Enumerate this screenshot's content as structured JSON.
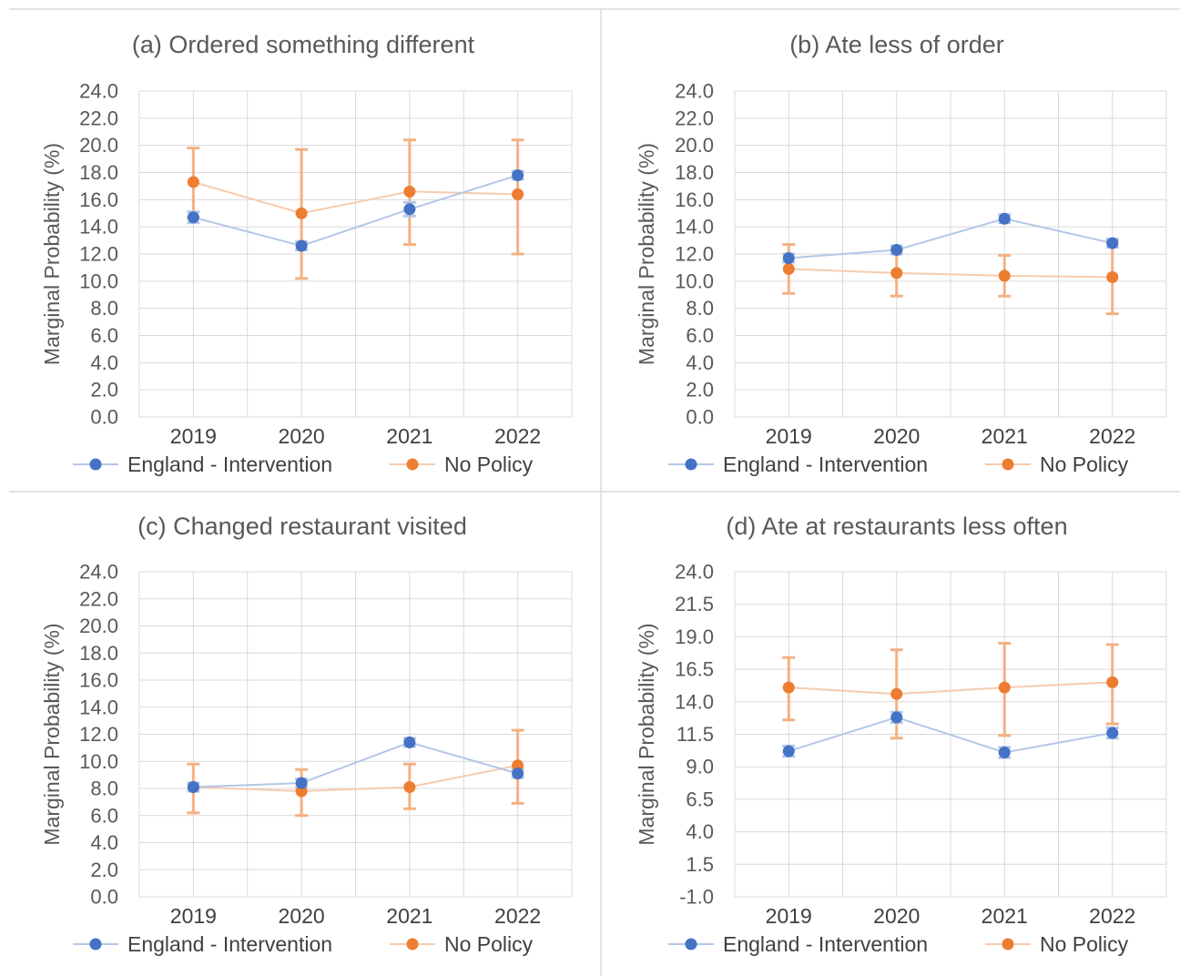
{
  "colors": {
    "series": [
      "#4472C4",
      "#ED7D31"
    ],
    "series_line": [
      "#B4C7E7",
      "#F8CBAD"
    ],
    "error_bar": "#F4B183",
    "grid": "#D9D9D9",
    "text": "#595959"
  },
  "chart_data": [
    {
      "type": "line",
      "title": "(a) Ordered something different",
      "xlabel": "",
      "ylabel": "Marginal  Probability (%)",
      "categories": [
        "2019",
        "2020",
        "2021",
        "2022"
      ],
      "ylim": [
        0,
        24
      ],
      "yticks": [
        "0.0",
        "2.0",
        "4.0",
        "6.0",
        "8.0",
        "10.0",
        "12.0",
        "14.0",
        "16.0",
        "18.0",
        "20.0",
        "22.0",
        "24.0"
      ],
      "grid": true,
      "legend_position": "bottom",
      "series": [
        {
          "name": "England - Intervention",
          "values": [
            14.7,
            12.6,
            15.3,
            17.8
          ],
          "error_low": [
            14.3,
            12.3,
            14.8,
            17.5
          ],
          "error_high": [
            15.1,
            12.9,
            15.8,
            18.1
          ]
        },
        {
          "name": "No Policy",
          "values": [
            17.3,
            15.0,
            16.6,
            16.4
          ],
          "error_low": [
            14.7,
            10.2,
            12.7,
            12.0
          ],
          "error_high": [
            19.8,
            19.7,
            20.4,
            20.4
          ]
        }
      ]
    },
    {
      "type": "line",
      "title": "(b) Ate less of order",
      "xlabel": "",
      "ylabel": "Marginal Probability (%)",
      "categories": [
        "2019",
        "2020",
        "2021",
        "2022"
      ],
      "ylim": [
        0,
        24
      ],
      "yticks": [
        "0.0",
        "2.0",
        "4.0",
        "6.0",
        "8.0",
        "10.0",
        "12.0",
        "14.0",
        "16.0",
        "18.0",
        "20.0",
        "22.0",
        "24.0"
      ],
      "grid": true,
      "legend_position": "bottom",
      "series": [
        {
          "name": "England - Intervention",
          "values": [
            11.7,
            12.3,
            14.6,
            12.8
          ],
          "error_low": [
            11.4,
            12.0,
            14.3,
            12.5
          ],
          "error_high": [
            12.0,
            12.6,
            14.9,
            13.1
          ]
        },
        {
          "name": "No Policy",
          "values": [
            10.9,
            10.6,
            10.4,
            10.3
          ],
          "error_low": [
            9.1,
            8.9,
            8.9,
            7.6
          ],
          "error_high": [
            12.7,
            12.3,
            11.9,
            13.0
          ]
        }
      ]
    },
    {
      "type": "line",
      "title": "(c) Changed restaurant visited",
      "xlabel": "",
      "ylabel": "Marginal Probability (%)",
      "categories": [
        "2019",
        "2020",
        "2021",
        "2022"
      ],
      "ylim": [
        0,
        24
      ],
      "yticks": [
        "0.0",
        "2.0",
        "4.0",
        "6.0",
        "8.0",
        "10.0",
        "12.0",
        "14.0",
        "16.0",
        "18.0",
        "20.0",
        "22.0",
        "24.0"
      ],
      "grid": true,
      "legend_position": "bottom",
      "series": [
        {
          "name": "England - Intervention",
          "values": [
            8.1,
            8.4,
            11.4,
            9.1
          ],
          "error_low": [
            7.8,
            8.1,
            11.1,
            8.8
          ],
          "error_high": [
            8.4,
            8.7,
            11.7,
            9.4
          ]
        },
        {
          "name": "No Policy",
          "values": [
            8.1,
            7.8,
            8.1,
            9.7
          ],
          "error_low": [
            6.2,
            6.0,
            6.5,
            6.9
          ],
          "error_high": [
            9.8,
            9.4,
            9.8,
            12.3
          ]
        }
      ]
    },
    {
      "type": "line",
      "title": "(d) Ate at restaurants less often",
      "xlabel": "",
      "ylabel": "Marginal Probability (%)",
      "categories": [
        "2019",
        "2020",
        "2021",
        "2022"
      ],
      "ylim": [
        -1,
        24
      ],
      "yticks": [
        "-1.0",
        "1.5",
        "4.0",
        "6.5",
        "9.0",
        "11.5",
        "14.0",
        "16.5",
        "19.0",
        "21.5",
        "24.0"
      ],
      "grid": true,
      "legend_position": "bottom",
      "series": [
        {
          "name": "England - Intervention",
          "values": [
            10.2,
            12.8,
            10.1,
            11.6
          ],
          "error_low": [
            9.8,
            12.4,
            9.7,
            11.2
          ],
          "error_high": [
            10.6,
            13.2,
            10.5,
            12.0
          ]
        },
        {
          "name": "No Policy",
          "values": [
            15.1,
            14.6,
            15.1,
            15.5
          ],
          "error_low": [
            12.6,
            11.2,
            11.4,
            12.3
          ],
          "error_high": [
            17.4,
            18.0,
            18.5,
            18.4
          ]
        }
      ]
    }
  ]
}
